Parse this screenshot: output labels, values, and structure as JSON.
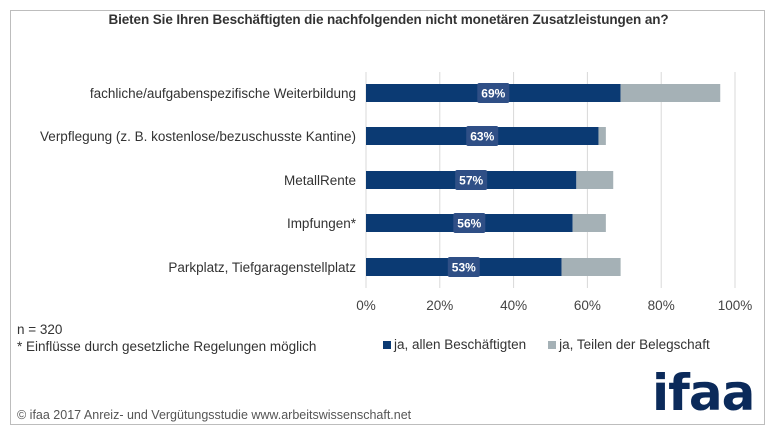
{
  "chart_data": {
    "type": "bar",
    "orientation": "horizontal",
    "stacked": true,
    "title": "Bieten Sie Ihren Beschäftigten die nachfolgenden nicht monetären Zusatzleistungen an?",
    "categories": [
      "fachliche/aufgabenspezifische Weiterbildung",
      "Verpflegung (z. B. kostenlose/bezuschusste Kantine)",
      "MetallRente",
      "Impfungen*",
      "Parkplatz, Tiefgaragenstellplatz"
    ],
    "series": [
      {
        "name": "ja, allen Beschäftigten",
        "color": "#0b3a73",
        "values": [
          69,
          63,
          57,
          56,
          53
        ],
        "labels": [
          "69%",
          "63%",
          "57%",
          "56%",
          "53%"
        ]
      },
      {
        "name": "ja, Teilen der Belegschaft",
        "color": "#a5b1b6",
        "values": [
          27,
          2,
          10,
          9,
          16
        ]
      }
    ],
    "xlabel": "",
    "ylabel": "",
    "xlim": [
      0,
      100
    ],
    "xticks": [
      "0%",
      "20%",
      "40%",
      "60%",
      "80%",
      "100%"
    ],
    "grid": true,
    "legend_position": "bottom-right"
  },
  "notes": {
    "sample": "n = 320",
    "footnote": "* Einflüsse durch gesetzliche Regelungen möglich"
  },
  "footer": "© ifaa 2017 Anreiz- und Vergütungsstudie www.arbeitswissenschaft.net",
  "logo": "ifaa",
  "colors": {
    "label_bg": "#2f4f86",
    "grid": "#d9d9d9",
    "logo": "#0b2a5a"
  }
}
